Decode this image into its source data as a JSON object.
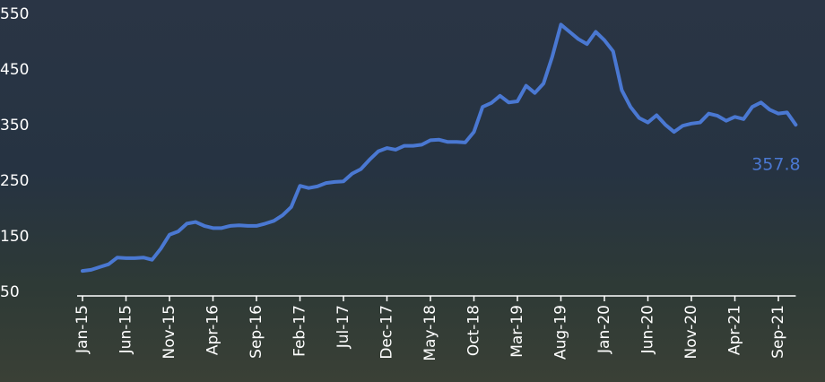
{
  "chart_data": {
    "type": "line",
    "categories": [
      "Jan-15",
      null,
      null,
      null,
      null,
      "Jun-15",
      null,
      null,
      null,
      null,
      "Nov-15",
      null,
      null,
      null,
      null,
      "Apr-16",
      null,
      null,
      null,
      null,
      "Sep-16",
      null,
      null,
      null,
      null,
      "Feb-17",
      null,
      null,
      null,
      null,
      "Jul-17",
      null,
      null,
      null,
      null,
      "Dec-17",
      null,
      null,
      null,
      null,
      "May-18",
      null,
      null,
      null,
      null,
      "Oct-18",
      null,
      null,
      null,
      null,
      "Mar-19",
      null,
      null,
      null,
      null,
      "Aug-19",
      null,
      null,
      null,
      null,
      "Jan-20",
      null,
      null,
      null,
      null,
      "Jun-20",
      null,
      null,
      null,
      null,
      "Nov-20",
      null,
      null,
      null,
      null,
      "Apr-21",
      null,
      null,
      null,
      null,
      "Sep-21",
      null,
      null
    ],
    "series": [
      {
        "color": "#4a78d2",
        "values": [
          95,
          97,
          102,
          107,
          119,
          118,
          118,
          119,
          115,
          135,
          160,
          166,
          180,
          183,
          176,
          172,
          172,
          176,
          177,
          176,
          176,
          180,
          185,
          195,
          210,
          248,
          244,
          247,
          253,
          255,
          256,
          270,
          278,
          295,
          310,
          316,
          313,
          320,
          320,
          322,
          330,
          331,
          327,
          327,
          326,
          345,
          390,
          397,
          410,
          398,
          400,
          428,
          415,
          432,
          480,
          538,
          525,
          512,
          503,
          525,
          510,
          490,
          420,
          390,
          370,
          362,
          375,
          358,
          345,
          356,
          360,
          362,
          378,
          374,
          365,
          372,
          368,
          390,
          398,
          385,
          378,
          380,
          357.8
        ]
      }
    ],
    "ylim": [
      50,
      550
    ],
    "yticks": [
      50,
      150,
      250,
      350,
      450,
      550
    ]
  }
}
